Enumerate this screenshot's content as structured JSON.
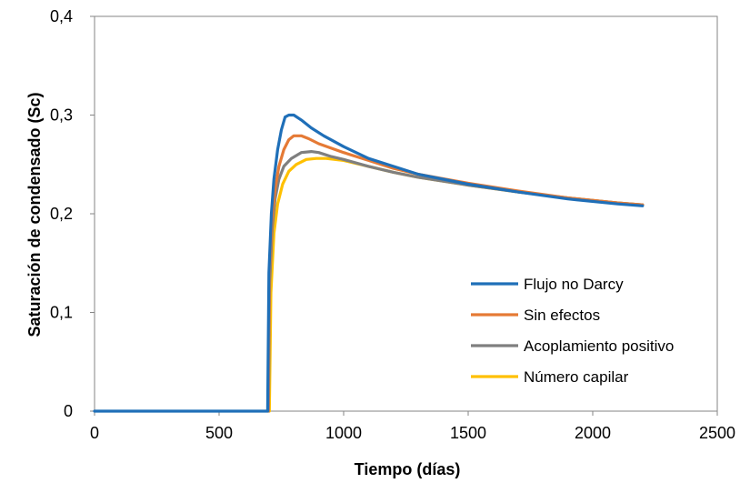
{
  "chart_data": {
    "type": "line",
    "title": "",
    "xlabel": "Tiempo (días)",
    "ylabel": "Saturación de condensado (Sc)",
    "xlim": [
      0,
      2500
    ],
    "ylim": [
      0,
      0.4
    ],
    "x_ticks": [
      "0",
      "500",
      "1000",
      "1500",
      "2000",
      "2500"
    ],
    "y_ticks": [
      "0",
      "0,1",
      "0,2",
      "0,3",
      "0,4"
    ],
    "grid": false,
    "legend_position": "bottom-right",
    "series": [
      {
        "name": "Flujo no Darcy",
        "color": "#1f6fb8",
        "x": [
          0,
          695,
          700,
          710,
          720,
          735,
          750,
          765,
          780,
          800,
          830,
          870,
          920,
          1000,
          1100,
          1200,
          1300,
          1500,
          1700,
          1900,
          2100,
          2200
        ],
        "y": [
          0,
          0,
          0.14,
          0.2,
          0.235,
          0.265,
          0.285,
          0.298,
          0.3,
          0.3,
          0.295,
          0.287,
          0.279,
          0.268,
          0.256,
          0.248,
          0.24,
          0.23,
          0.222,
          0.215,
          0.21,
          0.208
        ]
      },
      {
        "name": "Sin efectos",
        "color": "#e57a35",
        "x": [
          697,
          702,
          712,
          725,
          740,
          760,
          780,
          800,
          830,
          860,
          900,
          1000,
          1100,
          1200,
          1300,
          1500,
          1700,
          1900,
          2100,
          2200
        ],
        "y": [
          0,
          0.14,
          0.195,
          0.225,
          0.248,
          0.265,
          0.275,
          0.279,
          0.279,
          0.276,
          0.271,
          0.262,
          0.254,
          0.246,
          0.24,
          0.231,
          0.223,
          0.216,
          0.211,
          0.209
        ]
      },
      {
        "name": "Acoplamiento positivo",
        "color": "#7f7f7f",
        "x": [
          698,
          703,
          713,
          725,
          740,
          760,
          790,
          830,
          870,
          900,
          950,
          1000,
          1100,
          1200,
          1300,
          1500,
          1700,
          1900,
          2100,
          2200
        ],
        "y": [
          0,
          0.13,
          0.185,
          0.215,
          0.235,
          0.248,
          0.256,
          0.262,
          0.263,
          0.262,
          0.258,
          0.255,
          0.248,
          0.242,
          0.237,
          0.229,
          0.222,
          0.216,
          0.211,
          0.209
        ]
      },
      {
        "name": "Número capilar",
        "color": "#ffc000",
        "x": [
          702,
          708,
          720,
          735,
          755,
          780,
          810,
          850,
          890,
          930,
          1000,
          1100,
          1200,
          1300,
          1500,
          1700,
          1900,
          2100,
          2200
        ],
        "y": [
          0,
          0.12,
          0.18,
          0.21,
          0.23,
          0.243,
          0.25,
          0.255,
          0.256,
          0.256,
          0.254,
          0.248,
          0.242,
          0.237,
          0.229,
          0.222,
          0.216,
          0.211,
          0.209
        ]
      }
    ]
  }
}
